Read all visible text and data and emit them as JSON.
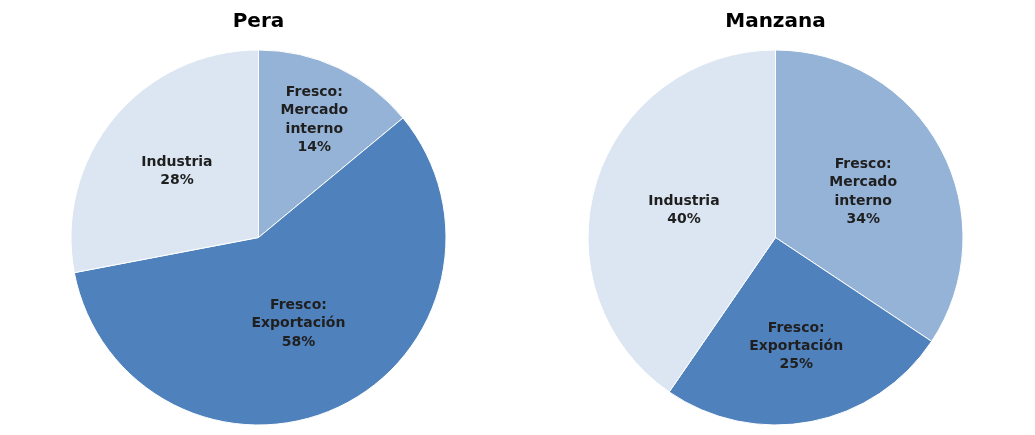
{
  "chart_data": [
    {
      "type": "pie",
      "title": "Pera",
      "categories": [
        "Fresco: Mercado interno",
        "Fresco: Exportación",
        "Industria"
      ],
      "values": [
        14,
        58,
        28
      ],
      "value_labels": [
        "14%",
        "58%",
        "28%"
      ],
      "colors": [
        "#95b3d7",
        "#4f81bd",
        "#dce6f2"
      ],
      "legend": false
    },
    {
      "type": "pie",
      "title": "Manzana",
      "categories": [
        "Fresco: Mercado interno",
        "Fresco: Exportación",
        "Industria"
      ],
      "values": [
        34,
        25,
        40
      ],
      "value_labels": [
        "34%",
        "25%",
        "40%"
      ],
      "colors": [
        "#95b3d7",
        "#4f81bd",
        "#dce6f2"
      ],
      "legend": false
    }
  ]
}
